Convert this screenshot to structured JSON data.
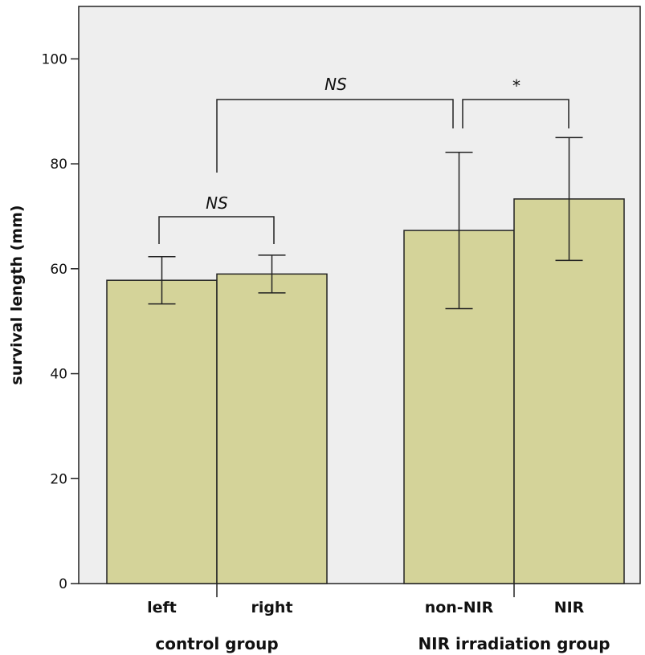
{
  "chart_data": {
    "type": "bar",
    "ylabel": "survival length (mm)",
    "ylim": [
      0,
      110
    ],
    "yticks": [
      0,
      20,
      40,
      60,
      80,
      100
    ],
    "grid": false,
    "colors": {
      "plot_bg": "#eeeeee",
      "bar_fill": "#d4d399",
      "line": "#222222"
    },
    "categories": [
      "left",
      "right",
      "non-NIR",
      "NIR"
    ],
    "values": [
      57.8,
      59.0,
      67.3,
      73.3
    ],
    "error_low": [
      53.3,
      55.4,
      52.4,
      61.6
    ],
    "error_high": [
      62.3,
      62.6,
      82.2,
      85.0
    ],
    "groups": [
      {
        "label": "control group",
        "categories": [
          "left",
          "right"
        ]
      },
      {
        "label": "NIR irradiation group",
        "categories": [
          "non-NIR",
          "NIR"
        ]
      }
    ],
    "annotations": [
      {
        "text": "NS",
        "between": [
          "left",
          "right"
        ]
      },
      {
        "text": "NS",
        "between": [
          "control group",
          "non-NIR"
        ]
      },
      {
        "text": "*",
        "between": [
          "non-NIR",
          "NIR"
        ]
      }
    ]
  }
}
